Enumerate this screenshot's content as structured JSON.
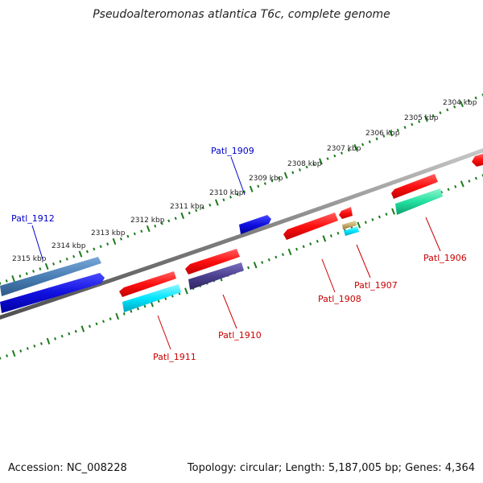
{
  "title": "Pseudoalteromonas atlantica T6c, complete genome",
  "footer": {
    "accession": "Accession: NC_008228",
    "summary": "Topology: circular; Length: 5,187,005 bp; Genes: 4,364"
  },
  "ticks": [
    {
      "label": "2304 kbp"
    },
    {
      "label": "2305 kbp"
    },
    {
      "label": "2306 kbp"
    },
    {
      "label": "2307 kbp"
    },
    {
      "label": "2308 kbp"
    },
    {
      "label": "2309 kbp"
    },
    {
      "label": "2310 kbp"
    },
    {
      "label": "2311 kbp"
    },
    {
      "label": "2312 kbp"
    },
    {
      "label": "2313 kbp"
    },
    {
      "label": "2314 kbp"
    },
    {
      "label": "2315 kbp"
    }
  ],
  "gene_labels": {
    "patl1912": "Patl_1912",
    "patl1909": "Patl_1909",
    "patl1906": "Patl_1906",
    "patl1907": "Patl_1907",
    "patl1908": "Patl_1908",
    "patl1910": "Patl_1910",
    "patl1911": "Patl_1911"
  },
  "colors": {
    "backbone": "#8a8a8a",
    "tick": "#1a7a1a",
    "forward_label": "#0000cc",
    "reverse_label": "#cc0000",
    "red": "#ff1a1a",
    "blue": "#1010e0",
    "steelblue": "#4a7fb5",
    "cyan": "#00e5ff",
    "slate": "#4b3f8f",
    "spring_green": "#22e0a0",
    "tan": "#c8b070"
  }
}
